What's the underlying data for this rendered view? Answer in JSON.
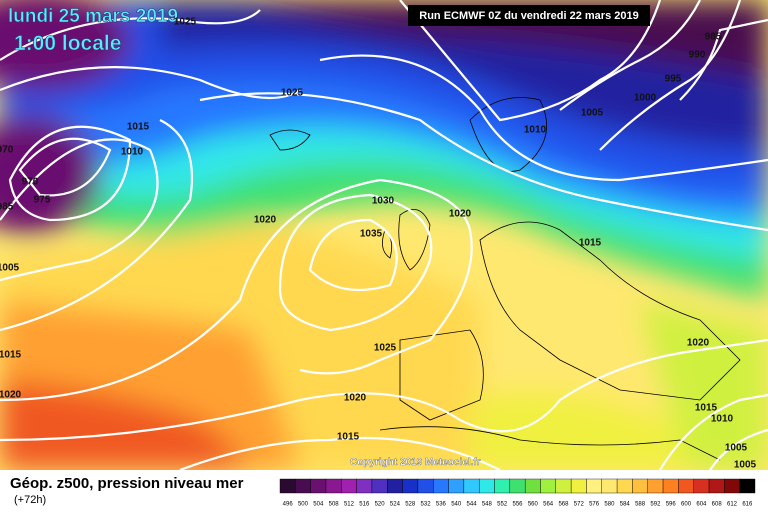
{
  "header": {
    "date": "lundi 25 mars 2019",
    "time": "1:00 locale",
    "run": "Run ECMWF 0Z du vendredi 22 mars 2019"
  },
  "footer": {
    "title": "Géop. z500, pression niveau mer",
    "lead": "(+72h)",
    "copyright": "Copyright 2019 Meteociel.fr"
  },
  "legend": {
    "labels": [
      496,
      500,
      504,
      508,
      512,
      516,
      520,
      524,
      528,
      532,
      536,
      540,
      544,
      548,
      552,
      556,
      560,
      564,
      568,
      572,
      576,
      580,
      584,
      588,
      592,
      596,
      600,
      604,
      608,
      612,
      616
    ],
    "colors": [
      "#2a0a30",
      "#4a0c50",
      "#6a1070",
      "#8a1890",
      "#a020b0",
      "#8030c0",
      "#5030c0",
      "#2020a0",
      "#1830c8",
      "#2050e8",
      "#2878ff",
      "#30a0ff",
      "#30c8ff",
      "#30e8e8",
      "#30f0b0",
      "#40e070",
      "#70e040",
      "#a0f040",
      "#d0f040",
      "#f0f040",
      "#fff080",
      "#ffe870",
      "#ffd850",
      "#ffc040",
      "#ffa030",
      "#ff8020",
      "#f05820",
      "#d83020",
      "#b01818",
      "#800808",
      "#000000"
    ]
  },
  "isobar_labels": [
    "1025",
    "1025",
    "1015",
    "1010",
    "970",
    "970",
    "975",
    "985",
    "1005",
    "1020",
    "1030",
    "1035",
    "1020",
    "1010",
    "1005",
    "1000",
    "995",
    "990",
    "985",
    "1015",
    "1020",
    "1025",
    "1020",
    "1015",
    "1015",
    "1020",
    "1015",
    "1010",
    "1005",
    "1005"
  ]
}
